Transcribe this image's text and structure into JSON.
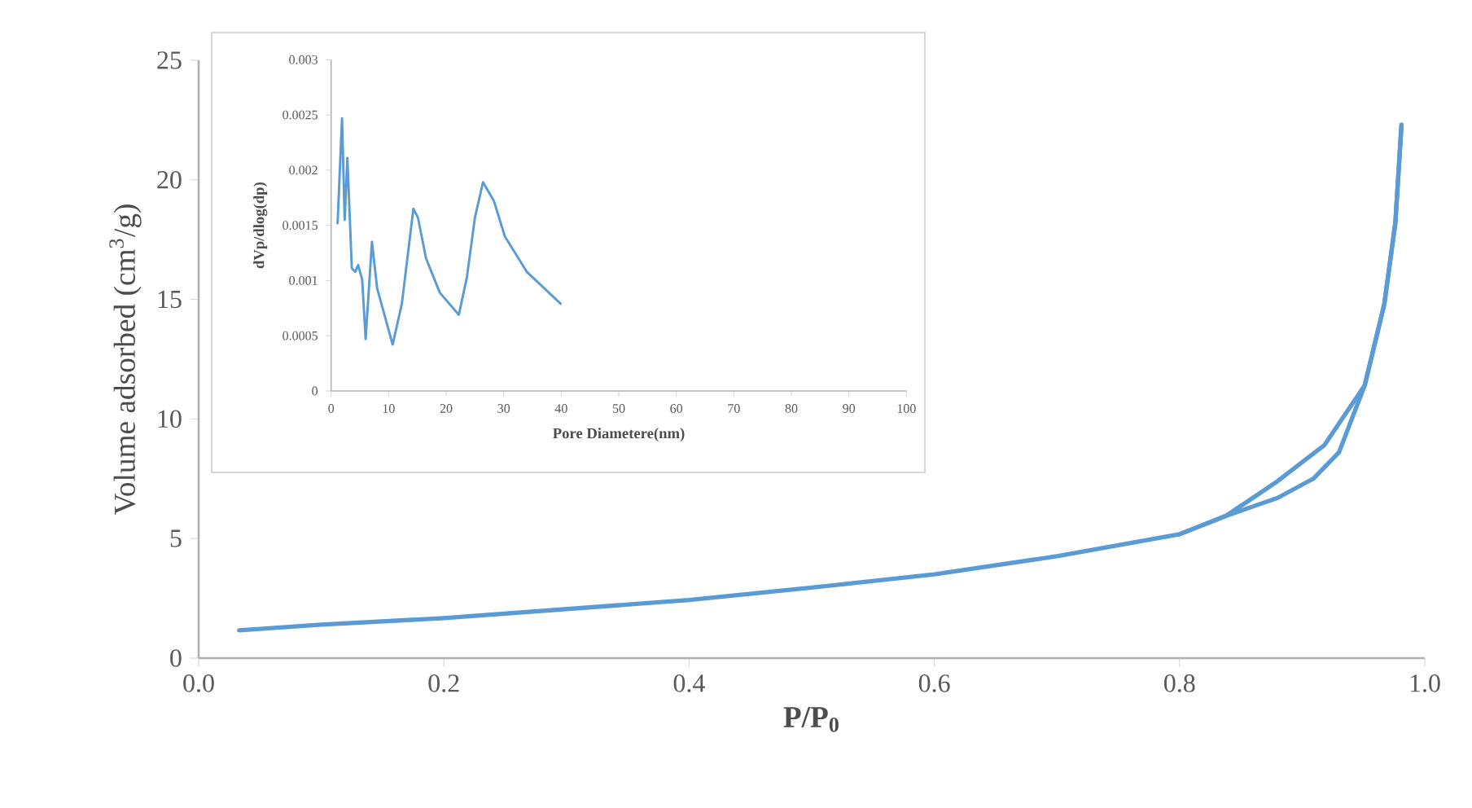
{
  "chart_data": [
    {
      "type": "line",
      "xlabel": "P/P$_{0}$",
      "ylabel": "Volume adsorbed (cm$^{3}$/g)",
      "xlim": [
        0,
        1
      ],
      "ylim": [
        0,
        25
      ],
      "xticks": [
        {
          "value": 0,
          "label": "0.0"
        },
        {
          "value": 0.2,
          "label": "0.2"
        },
        {
          "value": 0.4,
          "label": "0.4"
        },
        {
          "value": 0.6,
          "label": "0.6"
        },
        {
          "value": 0.8,
          "label": "0.8"
        },
        {
          "value": 1,
          "label": "1.0"
        }
      ],
      "yticks": [
        0,
        5,
        10,
        15,
        20,
        25
      ],
      "series": [
        {
          "color": "#5b9bd5",
          "x": [
            0.033,
            0.1,
            0.2,
            0.3,
            0.4,
            0.5,
            0.6,
            0.7,
            0.8,
            0.838,
            0.88,
            0.909,
            0.93,
            0.951,
            0.967,
            0.976,
            0.981
          ],
          "values": [
            1.16,
            1.4,
            1.67,
            2.05,
            2.43,
            2.95,
            3.5,
            4.26,
            5.18,
            5.95,
            6.7,
            7.5,
            8.6,
            11.4,
            14.8,
            18.2,
            22.3
          ]
        },
        {
          "color": "#5b9bd5",
          "x": [
            0.981,
            0.976,
            0.967,
            0.951,
            0.918,
            0.88,
            0.838,
            0.8
          ],
          "values": [
            22.3,
            18.2,
            14.8,
            11.4,
            8.9,
            7.4,
            5.95,
            5.18
          ]
        }
      ]
    },
    {
      "type": "line",
      "xlabel": "Pore Diametere(nm)",
      "ylabel": "dVp/dlog(dp)",
      "xlim": [
        0,
        100
      ],
      "ylim": [
        0,
        0.003
      ],
      "xticks": [
        0,
        10,
        20,
        30,
        40,
        50,
        60,
        70,
        80,
        90,
        100
      ],
      "yticks": [
        0,
        0.0005,
        0.001,
        0.0015,
        0.002,
        0.0025,
        0.003
      ],
      "series": [
        {
          "color": "#5b9bd5",
          "x": [
            1.13,
            1.9,
            2.36,
            2.83,
            3.6,
            4.2,
            4.7,
            5.4,
            6.0,
            7.1,
            8.0,
            10.7,
            12.3,
            14.3,
            15.1,
            16.5,
            18.9,
            22.2,
            23.6,
            25.0,
            26.4,
            28.3,
            30.2,
            34.0,
            39.9
          ],
          "values": [
            0.00152,
            0.00247,
            0.00155,
            0.00211,
            0.00111,
            0.00108,
            0.00114,
            0.00101,
            0.00047,
            0.00135,
            0.00093,
            0.00042,
            0.00079,
            0.00165,
            0.00157,
            0.0012,
            0.00089,
            0.00069,
            0.00103,
            0.00157,
            0.00189,
            0.00172,
            0.0014,
            0.00108,
            0.00079
          ]
        }
      ]
    }
  ]
}
